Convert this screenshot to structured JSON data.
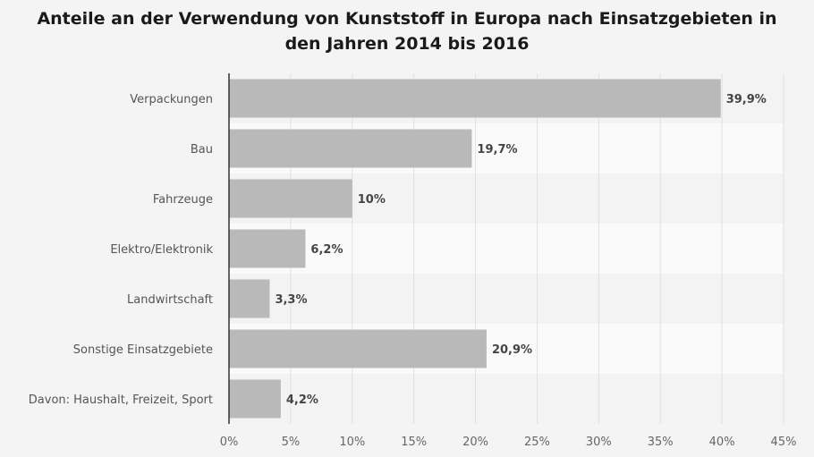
{
  "chart_data": {
    "type": "bar",
    "orientation": "horizontal",
    "title": "Anteile an der Verwendung von Kunststoff in Europa nach Einsatzgebieten in den Jahren 2014 bis 2016",
    "title_lines": [
      "Anteile an der Verwendung von Kunststoff in Europa nach Einsatzgebieten in",
      "den Jahren 2014 bis 2016"
    ],
    "categories": [
      "Verpackungen",
      "Bau",
      "Fahrzeuge",
      "Elektro/Elektronik",
      "Landwirtschaft",
      "Sonstige Einsatzgebiete",
      "Davon: Haushalt, Freizeit, Sport"
    ],
    "values": [
      39.9,
      19.7,
      10,
      6.2,
      3.3,
      20.9,
      4.2
    ],
    "value_labels": [
      "39,9%",
      "19,7%",
      "10%",
      "6,2%",
      "3,3%",
      "20,9%",
      "4,2%"
    ],
    "xlim": [
      0,
      45
    ],
    "ticks": [
      0,
      5,
      10,
      15,
      20,
      25,
      30,
      35,
      40,
      45
    ],
    "tick_labels": [
      "0%",
      "5%",
      "10%",
      "15%",
      "20%",
      "25%",
      "30%",
      "35%",
      "40%",
      "45%"
    ],
    "xlabel": "",
    "ylabel": "",
    "grid": true,
    "legend": "none",
    "colors": {
      "bar": "#b9b9b9",
      "background": "#f4f4f4",
      "band_light": "#fafafa",
      "band_dark": "#f3f3f3",
      "grid": "#e0e0e0",
      "axis": "#333333"
    }
  }
}
